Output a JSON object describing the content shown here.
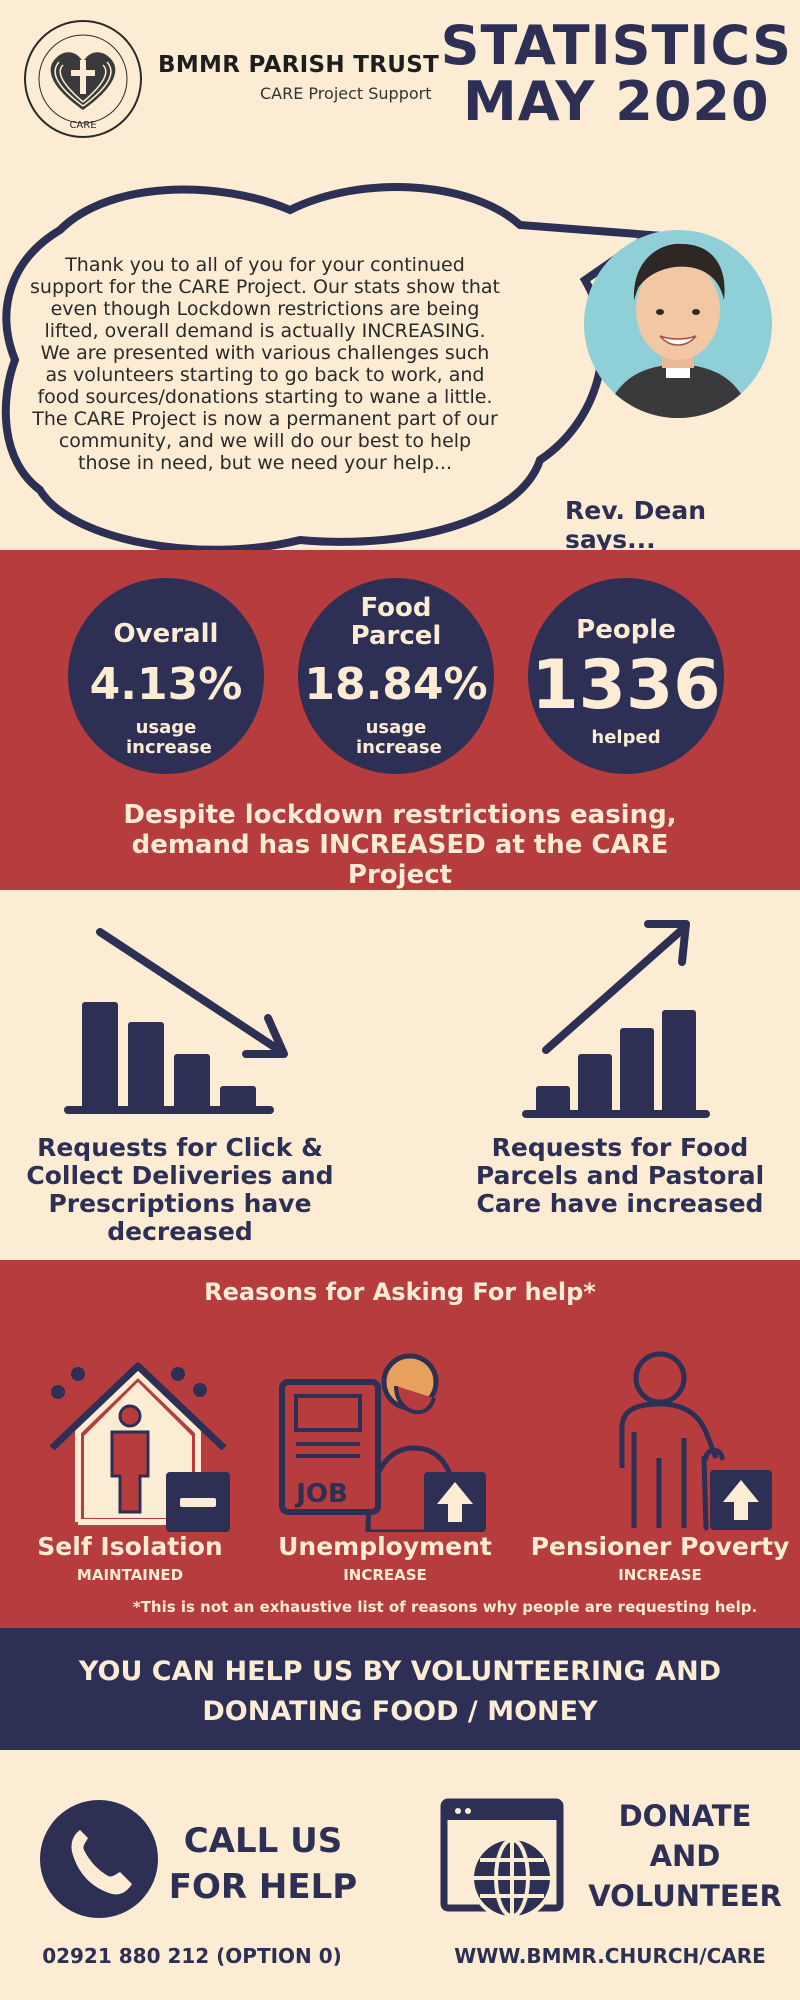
{
  "header": {
    "org_name": "BMMR PARISH TRUST",
    "org_sub": "CARE Project Support",
    "logo_word": "CARE",
    "title_line1": "STATISTICS",
    "title_line2": "MAY 2020"
  },
  "speech": {
    "text": "Thank you to all of you for your continued support for the CARE Project. Our stats show that even though Lockdown restrictions are being lifted, overall demand is actually INCREASING. We are presented with various challenges such as volunteers starting to go back to work, and food sources/donations starting to wane a little. The CARE Project is now a permanent part of our community, and we will do our best to help those in need, but we need your help...",
    "speaker": "Rev. Dean says..."
  },
  "stats": {
    "items": [
      {
        "label": "Overall",
        "value": "4.13%",
        "sub": "usage increase"
      },
      {
        "label": "Food Parcel",
        "value": "18.84%",
        "sub": "usage increase"
      },
      {
        "label": "People",
        "value": "1336",
        "sub": "helped"
      }
    ],
    "message": "Despite lockdown restrictions easing, demand has INCREASED at the CARE Project"
  },
  "trends": {
    "decrease_text": "Requests for Click & Collect Deliveries and Prescriptions have decreased",
    "increase_text": "Requests for Food Parcels and Pastoral Care have increased"
  },
  "reasons": {
    "title": "Reasons for Asking For help*",
    "items": [
      {
        "label": "Self Isolation",
        "status": "MAINTAINED",
        "icon": "house-person-icon"
      },
      {
        "label": "Unemployment",
        "status": "INCREASE",
        "icon": "job-newspaper-icon"
      },
      {
        "label": "Pensioner Poverty",
        "status": "INCREASE",
        "icon": "elderly-person-icon"
      }
    ],
    "job_word": "JOB",
    "footnote": "*This is not an exhaustive list of reasons why people are requesting help."
  },
  "cta": {
    "line1": "YOU CAN HELP US BY VOLUNTEERING AND",
    "line2": "DONATING FOOD / MONEY"
  },
  "contact": {
    "call_line1": "CALL US",
    "call_line2": "FOR HELP",
    "phone": "02921 880 212 (OPTION 0)",
    "donate_line1": "DONATE",
    "donate_line2": "AND",
    "donate_line3": "VOLUNTEER",
    "url": "WWW.BMMR.CHURCH/CARE"
  },
  "colors": {
    "cream": "#fcecd4",
    "navy": "#2d2f55",
    "red": "#b63c3e"
  }
}
